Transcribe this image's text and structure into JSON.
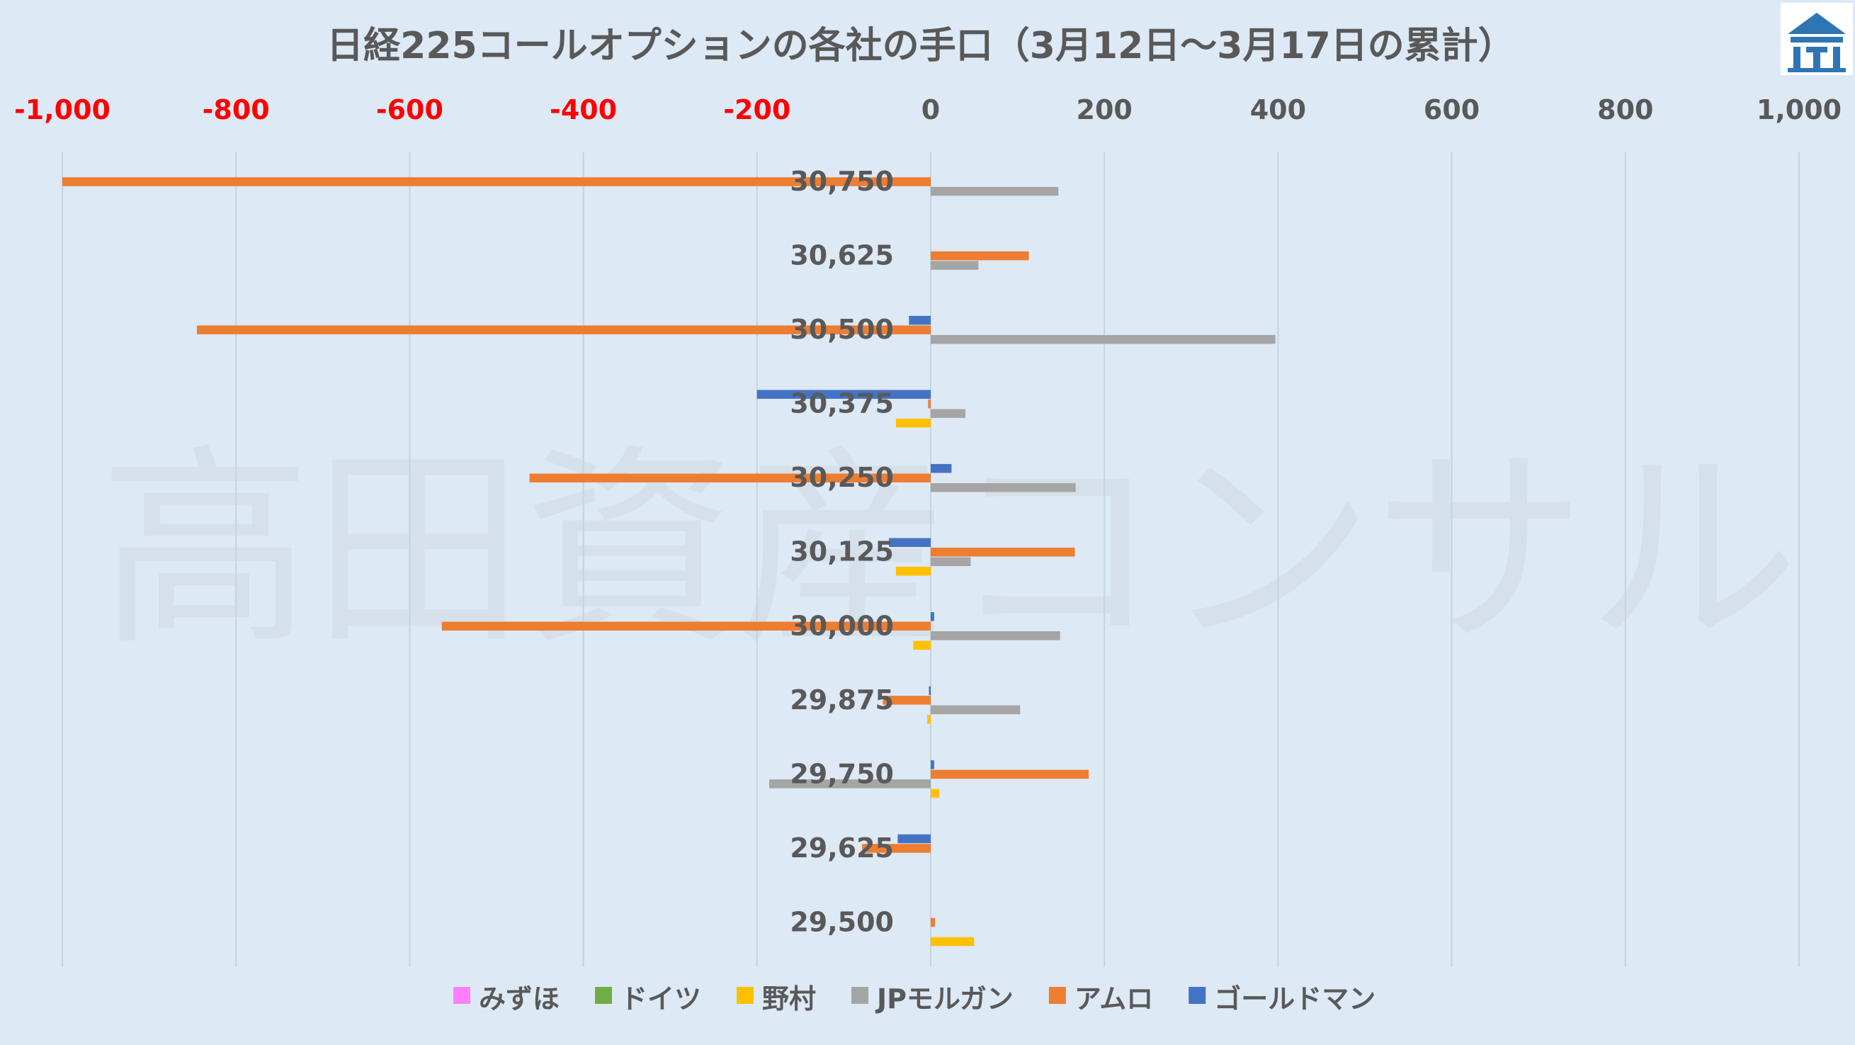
{
  "chart_data": {
    "type": "bar",
    "orientation": "horizontal",
    "title": "日経225コールオプションの各社の手口（3月12日～3月17日の累計）",
    "watermark": "高田資産コンサル",
    "xlim": [
      -1000,
      1000
    ],
    "x_ticks": [
      -1000,
      -800,
      -600,
      -400,
      -200,
      0,
      200,
      400,
      600,
      800,
      1000
    ],
    "x_tick_labels": [
      "-1,000",
      "-800",
      "-600",
      "-400",
      "-200",
      "0",
      "200",
      "400",
      "600",
      "800",
      "1,000"
    ],
    "negative_tick_color": "#ff0000",
    "positive_tick_color": "#595959",
    "grid": true,
    "legend_position": "bottom",
    "categories": [
      "30,750",
      "30,625",
      "30,500",
      "30,375",
      "30,250",
      "30,125",
      "30,000",
      "29,875",
      "29,750",
      "29,625",
      "29,500"
    ],
    "series": [
      {
        "name": "みずほ",
        "color": "#ff80ff",
        "values": [
          0,
          0,
          0,
          0,
          0,
          0,
          0,
          0,
          0,
          0,
          0
        ]
      },
      {
        "name": "ドイツ",
        "color": "#70ad47",
        "values": [
          0,
          0,
          0,
          0,
          0,
          0,
          0,
          0,
          0,
          0,
          0
        ]
      },
      {
        "name": "野村",
        "color": "#ffc000",
        "values": [
          0,
          0,
          0,
          -40,
          0,
          -40,
          -20,
          -4,
          10,
          0,
          50
        ]
      },
      {
        "name": "JPモルガン",
        "color": "#a5a5a5",
        "values": [
          147,
          55,
          397,
          40,
          167,
          46,
          149,
          103,
          -186,
          0,
          0
        ]
      },
      {
        "name": "アムロ",
        "color": "#ed7d31",
        "values": [
          -1000,
          113,
          -845,
          -3,
          -462,
          166,
          -563,
          -55,
          182,
          -79,
          5
        ]
      },
      {
        "name": "ゴールドマン",
        "color": "#4472c4",
        "values": [
          0,
          0,
          -25,
          -200,
          24,
          -48,
          4,
          -2,
          4,
          -38,
          0
        ]
      }
    ]
  }
}
